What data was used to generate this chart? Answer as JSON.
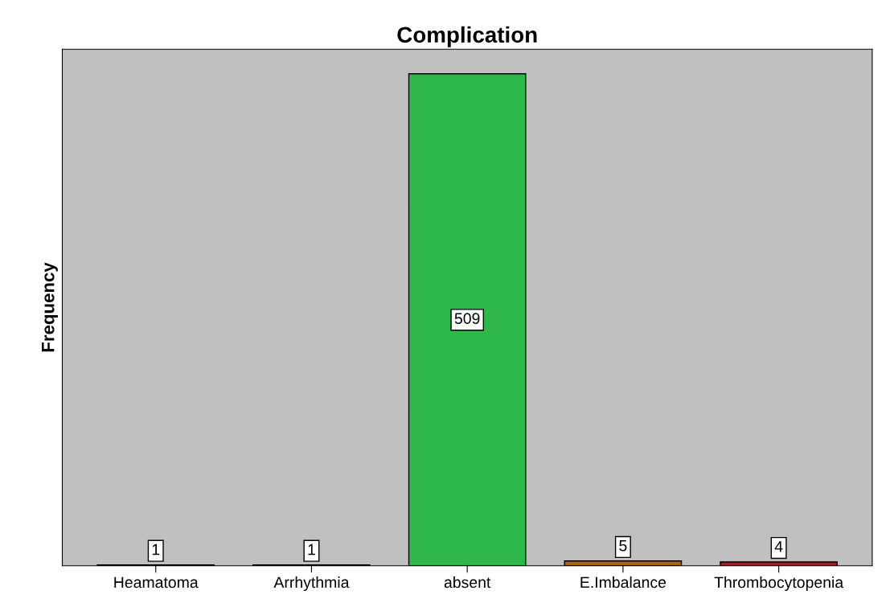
{
  "chart_data": {
    "type": "bar",
    "title": "Complication",
    "ylabel": "Frequency",
    "categories": [
      "Heamatoma",
      "Arrhythmia",
      "absent",
      "E.Imbalance",
      "Thrombocytopenia"
    ],
    "values": [
      1,
      1,
      509,
      5,
      4
    ],
    "colors": [
      "#732448",
      "#006666",
      "#2eb84a",
      "#a86410",
      "#9a2024"
    ],
    "data_labels": true,
    "grid": false,
    "tick_labels": "x"
  }
}
